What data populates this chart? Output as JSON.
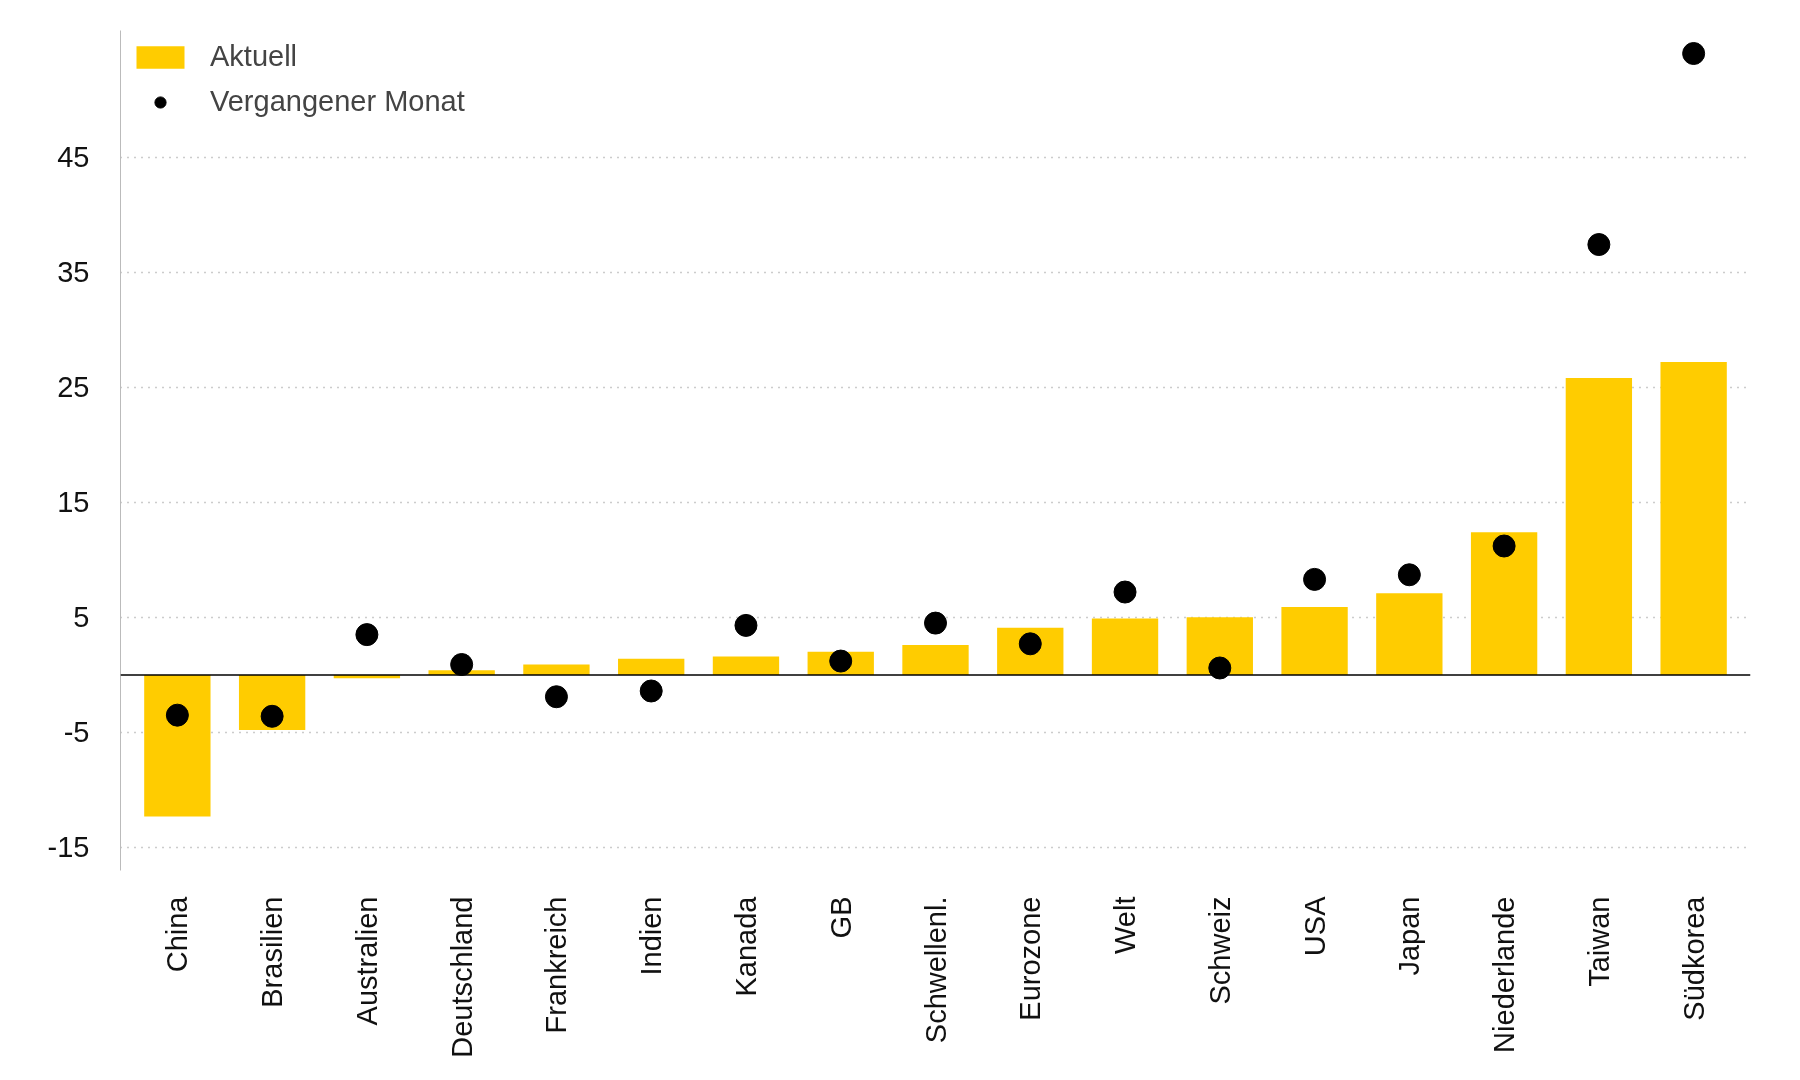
{
  "chart_data": {
    "type": "bar",
    "categories": [
      "China",
      "Brasilien",
      "Australien",
      "Deutschland",
      "Frankreich",
      "Indien",
      "Kanada",
      "GB",
      "Schwellenl.",
      "Eurozone",
      "Welt",
      "Schweiz",
      "USA",
      "Japan",
      "Niederlande",
      "Taiwan",
      "Südkorea"
    ],
    "series": [
      {
        "name": "Aktuell",
        "color": "#ffcc00",
        "values": [
          -12.3,
          -4.8,
          -0.3,
          0.4,
          0.9,
          1.4,
          1.6,
          2.0,
          2.6,
          4.1,
          4.9,
          5.0,
          5.9,
          7.1,
          12.4,
          25.8,
          27.2
        ]
      },
      {
        "name": "Vergangener Monat",
        "type": "scatter",
        "marker": "circle",
        "color": "#000000",
        "values": [
          -3.5,
          -3.6,
          3.5,
          0.9,
          -1.9,
          -1.4,
          4.3,
          1.2,
          4.5,
          2.7,
          7.2,
          0.6,
          8.3,
          8.7,
          11.2,
          37.4,
          54.0
        ]
      }
    ],
    "ylim": [
      -17,
      56
    ],
    "yticks": [
      -15,
      -5,
      5,
      15,
      25,
      35,
      45
    ],
    "grid": "y",
    "legend": "top left",
    "ref_lines": [
      {
        "axis": "y",
        "value": 0,
        "color": "#000000"
      }
    ]
  }
}
